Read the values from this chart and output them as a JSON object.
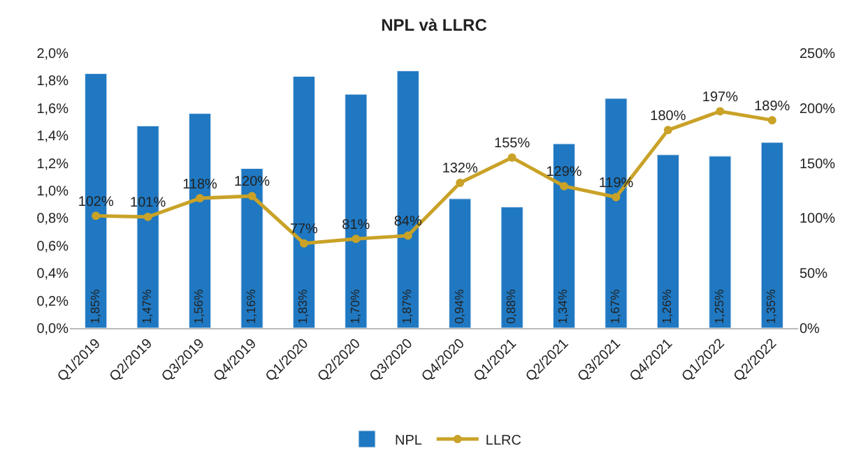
{
  "chart_data": {
    "type": "bar",
    "title": "NPL và LLRC",
    "categories": [
      "Q1/2019",
      "Q2/2019",
      "Q3/2019",
      "Q4/2019",
      "Q1/2020",
      "Q2/2020",
      "Q3/2020",
      "Q4/2020",
      "Q1/2021",
      "Q2/2021",
      "Q3/2021",
      "Q4/2021",
      "Q1/2022",
      "Q2/2022"
    ],
    "series": [
      {
        "name": "NPL",
        "color": "#1f78c1",
        "values": [
          1.85,
          1.47,
          1.56,
          1.16,
          1.83,
          1.7,
          1.87,
          0.94,
          0.88,
          1.34,
          1.67,
          1.26,
          1.25,
          1.35
        ],
        "value_labels": [
          "1,85%",
          "1,47%",
          "1,56%",
          "1,16%",
          "1,83%",
          "1,70%",
          "1,87%",
          "0,94%",
          "0,88%",
          "1,34%",
          "1,67%",
          "1,26%",
          "1,25%",
          "1,35%"
        ]
      },
      {
        "name": "LLRC",
        "type": "line",
        "axis": "y2",
        "color": "#c9a227",
        "marker": "circle",
        "values": [
          102,
          101,
          118,
          120,
          77,
          81,
          84,
          132,
          155,
          129,
          119,
          180,
          197,
          189
        ],
        "value_labels": [
          "102%",
          "101%",
          "118%",
          "120%",
          "77%",
          "81%",
          "84%",
          "132%",
          "155%",
          "129%",
          "119%",
          "180%",
          "197%",
          "189%"
        ]
      }
    ],
    "ylim": [
      0,
      2.0
    ],
    "yticks": [
      {
        "value": 0,
        "label": "0,0%"
      },
      {
        "value": 0.2,
        "label": "0,2%"
      },
      {
        "value": 0.4,
        "label": "0,4%"
      },
      {
        "value": 0.6,
        "label": "0,6%"
      },
      {
        "value": 0.8,
        "label": "0,8%"
      },
      {
        "value": 1.0,
        "label": "1,0%"
      },
      {
        "value": 1.2,
        "label": "1,2%"
      },
      {
        "value": 1.4,
        "label": "1,4%"
      },
      {
        "value": 1.6,
        "label": "1,6%"
      },
      {
        "value": 1.8,
        "label": "1,8%"
      },
      {
        "value": 2.0,
        "label": "2,0%"
      }
    ],
    "y2lim": [
      0,
      250
    ],
    "y2ticks": [
      {
        "value": 0,
        "label": "0%"
      },
      {
        "value": 50,
        "label": "50%"
      },
      {
        "value": 100,
        "label": "100%"
      },
      {
        "value": 150,
        "label": "150%"
      },
      {
        "value": 200,
        "label": "200%"
      },
      {
        "value": 250,
        "label": "250%"
      }
    ],
    "legend": "bottom"
  }
}
